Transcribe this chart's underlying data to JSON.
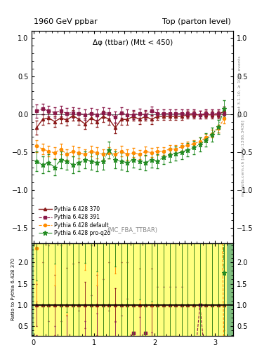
{
  "title_left": "1960 GeV ppbar",
  "title_right": "Top (parton level)",
  "subplot_title": "Δφ (ttbar) (Mtt < 450)",
  "mc_label": "(MC_FBA_TTBAR)",
  "right_label_top": "Rivet 3.1.10, ≥ 100k events",
  "right_label_bot": "mcplots.cern.ch [arXiv:1306.3436]",
  "ratio_ylabel": "Ratio to Pythia 6.428 370",
  "main_ylim": [
    -1.7,
    1.1
  ],
  "main_yticks": [
    -1.5,
    -1.0,
    -0.5,
    0.0,
    0.5,
    1.0
  ],
  "ratio_ylim": [
    0.28,
    2.45
  ],
  "ratio_yticks": [
    0.5,
    1.0,
    1.5,
    2.0
  ],
  "xlim": [
    -0.03,
    3.3
  ],
  "xticks": [
    0,
    1,
    2,
    3
  ],
  "series": [
    {
      "label": "Pythia 6.428 370",
      "color": "#8B1A1A",
      "marker": "^",
      "linestyle": "-",
      "linewidth": 1.0,
      "markersize": 3,
      "x": [
        0.05,
        0.15,
        0.25,
        0.35,
        0.45,
        0.55,
        0.65,
        0.75,
        0.85,
        0.95,
        1.05,
        1.15,
        1.25,
        1.35,
        1.45,
        1.55,
        1.65,
        1.75,
        1.85,
        1.95,
        2.05,
        2.15,
        2.25,
        2.35,
        2.45,
        2.55,
        2.65,
        2.75,
        2.85,
        2.95,
        3.05,
        3.15
      ],
      "y": [
        -0.18,
        -0.07,
        -0.05,
        -0.1,
        -0.05,
        -0.08,
        -0.02,
        -0.07,
        -0.13,
        -0.05,
        -0.1,
        -0.03,
        -0.07,
        -0.18,
        -0.07,
        -0.07,
        -0.03,
        -0.07,
        -0.03,
        -0.07,
        -0.03,
        -0.03,
        -0.03,
        -0.03,
        -0.03,
        -0.01,
        -0.01,
        -0.01,
        -0.01,
        -0.01,
        -0.01,
        0.04
      ],
      "yerr": [
        0.09,
        0.07,
        0.07,
        0.07,
        0.07,
        0.07,
        0.07,
        0.07,
        0.07,
        0.07,
        0.07,
        0.07,
        0.07,
        0.07,
        0.07,
        0.07,
        0.06,
        0.06,
        0.06,
        0.06,
        0.05,
        0.05,
        0.05,
        0.05,
        0.05,
        0.05,
        0.05,
        0.05,
        0.05,
        0.05,
        0.05,
        0.06
      ]
    },
    {
      "label": "Pythia 6.428 391",
      "color": "#8B1A4A",
      "marker": "s",
      "linestyle": "--",
      "linewidth": 0.8,
      "markersize": 3,
      "x": [
        0.05,
        0.15,
        0.25,
        0.35,
        0.45,
        0.55,
        0.65,
        0.75,
        0.85,
        0.95,
        1.05,
        1.15,
        1.25,
        1.35,
        1.45,
        1.55,
        1.65,
        1.75,
        1.85,
        1.95,
        2.05,
        2.15,
        2.25,
        2.35,
        2.45,
        2.55,
        2.65,
        2.75,
        2.85,
        2.95,
        3.05,
        3.15
      ],
      "y": [
        0.04,
        0.07,
        0.04,
        0.02,
        0.04,
        0.01,
        0.02,
        0.01,
        -0.01,
        0.01,
        -0.01,
        0.02,
        0.01,
        -0.04,
        0.02,
        -0.01,
        -0.01,
        0.01,
        -0.01,
        0.04,
        0.01,
        0.01,
        0.01,
        0.01,
        0.01,
        0.01,
        0.01,
        -0.01,
        0.01,
        0.01,
        0.01,
        0.01
      ],
      "yerr": [
        0.09,
        0.07,
        0.07,
        0.07,
        0.07,
        0.07,
        0.07,
        0.07,
        0.07,
        0.07,
        0.07,
        0.07,
        0.07,
        0.07,
        0.07,
        0.07,
        0.06,
        0.06,
        0.06,
        0.06,
        0.05,
        0.05,
        0.05,
        0.05,
        0.05,
        0.05,
        0.05,
        0.05,
        0.05,
        0.05,
        0.05,
        0.06
      ]
    },
    {
      "label": "Pythia 6.428 default",
      "color": "#FF8C00",
      "marker": "o",
      "linestyle": "--",
      "linewidth": 0.8,
      "markersize": 3,
      "x": [
        0.05,
        0.15,
        0.25,
        0.35,
        0.45,
        0.55,
        0.65,
        0.75,
        0.85,
        0.95,
        1.05,
        1.15,
        1.25,
        1.35,
        1.45,
        1.55,
        1.65,
        1.75,
        1.85,
        1.95,
        2.05,
        2.15,
        2.25,
        2.35,
        2.45,
        2.55,
        2.65,
        2.75,
        2.85,
        2.95,
        3.05,
        3.15
      ],
      "y": [
        -0.42,
        -0.46,
        -0.49,
        -0.51,
        -0.46,
        -0.53,
        -0.49,
        -0.51,
        -0.53,
        -0.49,
        -0.51,
        -0.53,
        -0.51,
        -0.53,
        -0.49,
        -0.53,
        -0.51,
        -0.53,
        -0.49,
        -0.51,
        -0.49,
        -0.49,
        -0.46,
        -0.46,
        -0.43,
        -0.41,
        -0.39,
        -0.36,
        -0.31,
        -0.26,
        -0.19,
        -0.06
      ],
      "yerr": [
        0.08,
        0.07,
        0.07,
        0.07,
        0.07,
        0.07,
        0.07,
        0.07,
        0.07,
        0.07,
        0.07,
        0.07,
        0.07,
        0.07,
        0.07,
        0.07,
        0.06,
        0.06,
        0.06,
        0.06,
        0.05,
        0.05,
        0.05,
        0.05,
        0.05,
        0.05,
        0.05,
        0.05,
        0.05,
        0.05,
        0.05,
        0.06
      ]
    },
    {
      "label": "Pythia 6.428 pro-q2o",
      "color": "#228B22",
      "marker": "*",
      "linestyle": "-.",
      "linewidth": 0.8,
      "markersize": 5,
      "x": [
        0.05,
        0.15,
        0.25,
        0.35,
        0.45,
        0.55,
        0.65,
        0.75,
        0.85,
        0.95,
        1.05,
        1.15,
        1.25,
        1.35,
        1.45,
        1.55,
        1.65,
        1.75,
        1.85,
        1.95,
        2.05,
        2.15,
        2.25,
        2.35,
        2.45,
        2.55,
        2.65,
        2.75,
        2.85,
        2.95,
        3.05,
        3.15
      ],
      "y": [
        -0.62,
        -0.67,
        -0.64,
        -0.7,
        -0.6,
        -0.62,
        -0.67,
        -0.64,
        -0.6,
        -0.62,
        -0.64,
        -0.62,
        -0.47,
        -0.6,
        -0.62,
        -0.64,
        -0.6,
        -0.62,
        -0.64,
        -0.6,
        -0.62,
        -0.57,
        -0.54,
        -0.52,
        -0.5,
        -0.47,
        -0.44,
        -0.4,
        -0.34,
        -0.27,
        -0.17,
        0.07
      ],
      "yerr": [
        0.13,
        0.11,
        0.11,
        0.11,
        0.11,
        0.11,
        0.11,
        0.11,
        0.11,
        0.11,
        0.11,
        0.11,
        0.11,
        0.11,
        0.11,
        0.11,
        0.1,
        0.1,
        0.1,
        0.1,
        0.09,
        0.09,
        0.09,
        0.09,
        0.09,
        0.09,
        0.09,
        0.09,
        0.09,
        0.09,
        0.09,
        0.11
      ]
    }
  ],
  "bg_green": "#7FBF7F",
  "bg_yellow": "#FFFF80",
  "ratio_band_color": "#FFFF80",
  "ratio_green_color": "#7FBF7F"
}
